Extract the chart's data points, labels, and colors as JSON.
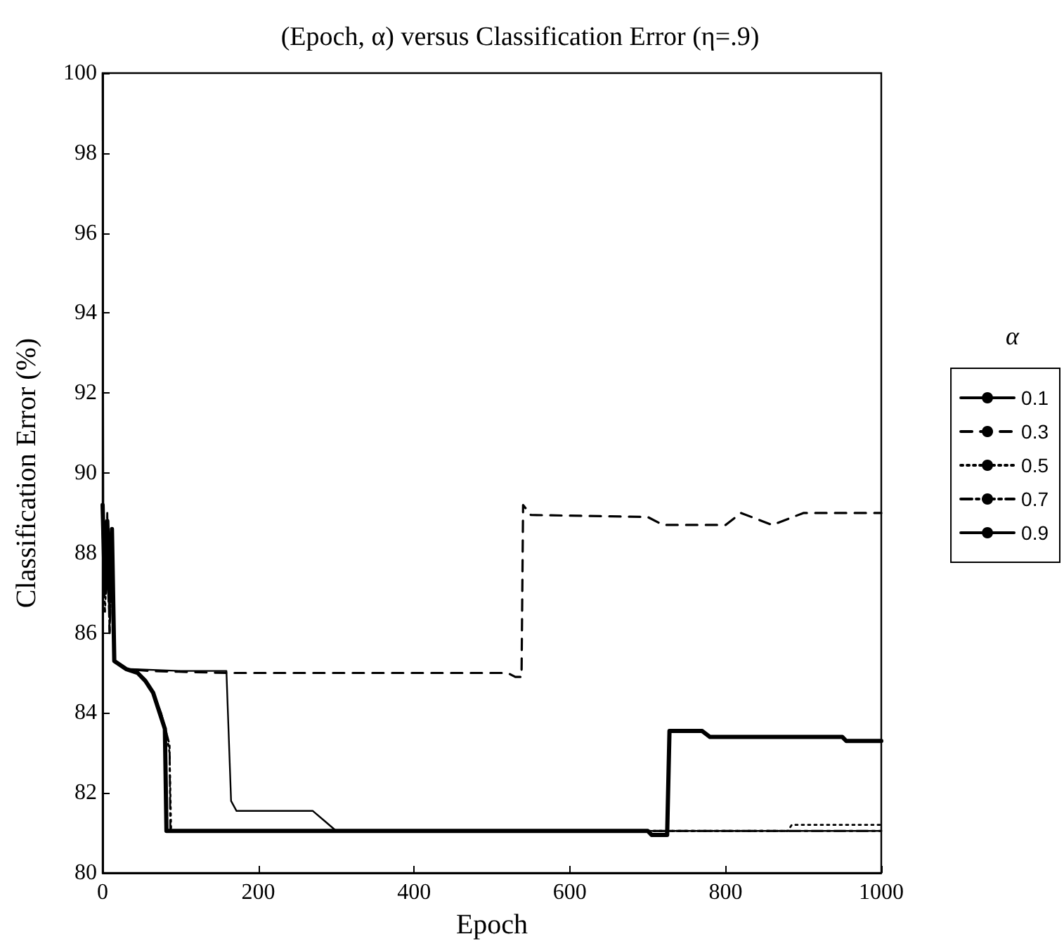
{
  "chart_data": {
    "type": "line",
    "title": "(Epoch, α) versus Classification Error (η=.9)",
    "xlabel": "Epoch",
    "ylabel": "Classification Error (%)",
    "legend_title": "α",
    "xlim": [
      0,
      1000
    ],
    "xticks": [
      0,
      200,
      400,
      600,
      800,
      1000
    ],
    "ylim": [
      80,
      100
    ],
    "yticks": [
      80,
      82,
      84,
      86,
      88,
      90,
      92,
      94,
      96,
      98,
      100
    ],
    "grid": false,
    "legend": "right",
    "marker": "none",
    "series": [
      {
        "name": "0.1",
        "color": "#000000",
        "line_style": "solid",
        "x": [
          0,
          1,
          3,
          6,
          9,
          12,
          15,
          30,
          100,
          159,
          165,
          172,
          270,
          285,
          300,
          1000
        ],
        "values": [
          100,
          89,
          87,
          88.5,
          86.5,
          88,
          85.3,
          85.1,
          85.05,
          85.05,
          81.8,
          81.55,
          81.55,
          81.3,
          81.05,
          81.05
        ]
      },
      {
        "name": "0.3",
        "color": "#000000",
        "line_style": "dashed",
        "x": [
          0,
          3,
          6,
          9,
          12,
          15,
          30,
          60,
          160,
          520,
          530,
          538,
          540,
          550,
          700,
          720,
          800,
          820,
          860,
          900,
          1000
        ],
        "values": [
          89,
          87.5,
          88.8,
          86,
          88.2,
          85.3,
          85.1,
          85.05,
          85.0,
          85.0,
          84.9,
          84.9,
          89.2,
          88.95,
          88.9,
          88.7,
          88.7,
          89.0,
          88.7,
          89.0,
          89.0
        ]
      },
      {
        "name": "0.5",
        "color": "#000000",
        "line_style": "dotted",
        "x": [
          0,
          3,
          6,
          9,
          12,
          15,
          30,
          45,
          55,
          65,
          75,
          82,
          86,
          88,
          880,
          885,
          1000
        ],
        "values": [
          89,
          86.5,
          88,
          87,
          88.5,
          85.3,
          85.1,
          85.0,
          84.8,
          84.5,
          84.0,
          83.5,
          83.0,
          81.05,
          81.05,
          81.2,
          81.2
        ]
      },
      {
        "name": "0.7",
        "color": "#000000",
        "line_style": "dashdot",
        "x": [
          0,
          3,
          6,
          9,
          12,
          15,
          30,
          45,
          55,
          65,
          75,
          82,
          86,
          87,
          1000
        ],
        "values": [
          88.5,
          87,
          89,
          86,
          88,
          85.3,
          85.1,
          85.0,
          84.8,
          84.5,
          84.0,
          83.5,
          83.2,
          81.05,
          81.05
        ]
      },
      {
        "name": "0.9",
        "color": "#000000",
        "line_style": "solid",
        "x": [
          0,
          3,
          6,
          9,
          12,
          15,
          30,
          45,
          55,
          65,
          75,
          80,
          82,
          700,
          705,
          725,
          728,
          770,
          780,
          950,
          955,
          1000
        ],
        "values": [
          89.2,
          87,
          88.8,
          86.8,
          88.6,
          85.3,
          85.1,
          85.0,
          84.8,
          84.5,
          83.9,
          83.6,
          81.05,
          81.05,
          80.95,
          80.95,
          83.55,
          83.55,
          83.4,
          83.4,
          83.3,
          83.3
        ]
      }
    ]
  }
}
